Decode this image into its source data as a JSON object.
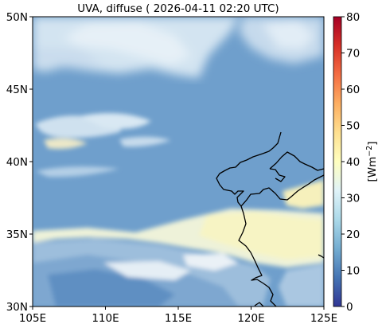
{
  "title": "UVA, diffuse ( 2026-04-11 02:20 UTC)",
  "map": {
    "x_ticks": [
      "105E",
      "110E",
      "115E",
      "120E",
      "125E"
    ],
    "y_ticks": [
      "50N",
      "45N",
      "40N",
      "35N",
      "30N"
    ],
    "lon_range": [
      105,
      125
    ],
    "lat_range": [
      30,
      50
    ]
  },
  "colorbar": {
    "label_base": "[Wm",
    "label_exp": "−2",
    "label_close": "]",
    "ticks": [
      "80",
      "70",
      "60",
      "50",
      "40",
      "30",
      "20",
      "10",
      "0"
    ],
    "range": [
      0,
      80
    ],
    "colors": [
      "#313695",
      "#4575b4",
      "#74add1",
      "#abd9e9",
      "#e0f3f8",
      "#ffffbf",
      "#fee090",
      "#fdae61",
      "#f46d43",
      "#d73027",
      "#a50026"
    ]
  },
  "colors": {
    "background_field": "#6f9fcc",
    "cloud_light": "#dbeaf4",
    "cloud_yellow": "#f6f4c2",
    "coastline": "#000000"
  }
}
